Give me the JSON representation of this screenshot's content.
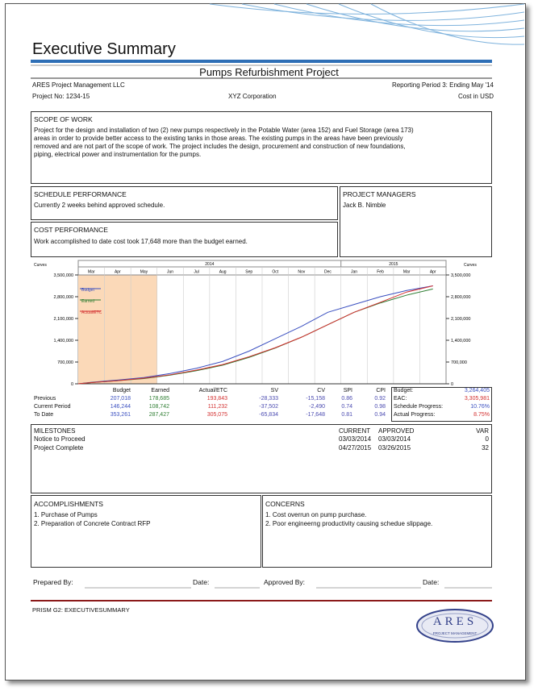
{
  "header": {
    "title": "Executive Summary",
    "project_title": "Pumps Refurbishment Project",
    "company": "ARES Project Management LLC",
    "reporting_period": "Reporting Period 3:  Ending May '14",
    "project_no": "Project No: 1234-15",
    "client": "XYZ Corporation",
    "currency": "Cost in USD"
  },
  "scope": {
    "heading": "SCOPE OF WORK",
    "lines": [
      "Project for the design and installation of two (2) new pumps respectively in the Potable Water (area 152) and Fuel Storage (area 173)",
      "areas in order to provide better access to the existing tanks in those areas. The existing pumps in the areas have been previously",
      "removed and are not part of the scope of work.  The project includes the design, procurement and construction of new foundations,",
      "piping, electrical power and instrumentation for the pumps."
    ]
  },
  "schedule": {
    "heading": "SCHEDULE PERFORMANCE",
    "text": "Currently 2 weeks behind approved schedule."
  },
  "managers": {
    "heading": "PROJECT MANAGERS",
    "names": [
      "Jack B. Nimble"
    ]
  },
  "cost": {
    "heading": "COST PERFORMANCE",
    "text": "Work accomplished to date cost took 17,648 more than the budget earned."
  },
  "chart_data": {
    "type": "line",
    "y_label": "Curves",
    "y2_label": "Curves",
    "year_labels": [
      "2014",
      "2015"
    ],
    "categories": [
      "Mar",
      "Apr",
      "May",
      "Jun",
      "Jul",
      "Aug",
      "Sep",
      "Oct",
      "Nov",
      "Dec",
      "Jan",
      "Feb",
      "Mar",
      "Apr"
    ],
    "series": [
      {
        "name": "Budget",
        "color": "#3a4fc0",
        "values": [
          50000,
          120000,
          200000,
          330000,
          500000,
          720000,
          1050000,
          1450000,
          1850000,
          2300000,
          2550000,
          2800000,
          3000000,
          3150000
        ]
      },
      {
        "name": "Earned",
        "color": "#2e7d32",
        "values": [
          40000,
          100000,
          170000,
          280000,
          420000,
          600000,
          850000,
          1150000,
          1500000,
          1900000,
          2300000,
          2600000,
          2850000,
          3050000
        ]
      },
      {
        "name": "Actual/ETC",
        "color": "#d32f2f",
        "values": [
          40000,
          100000,
          180000,
          290000,
          440000,
          620000,
          870000,
          1160000,
          1500000,
          1900000,
          2300000,
          2620000,
          2950000,
          3150000
        ]
      }
    ],
    "ylim": [
      0,
      3500000
    ],
    "yticks": [
      0,
      {
        "value": 700000,
        "label": "700,000"
      },
      {
        "value": 1400000,
        "label": "1,400,000"
      },
      {
        "value": 2100000,
        "label": "2,100,000"
      },
      {
        "value": 2800000,
        "label": "2,800,000"
      },
      {
        "value": 3500000,
        "label": "3,500,000"
      }
    ],
    "grid": true,
    "legend": "upper-left"
  },
  "performance": {
    "columns": [
      "Budget",
      "Earned",
      "Actual/ETC",
      "SV",
      "CV",
      "SPI",
      "CPI"
    ],
    "colors": [
      "#3a4fc0",
      "#2e7d32",
      "#d32f2f",
      "#4a4ab0",
      "#4a4ab0",
      "#4a4ab0",
      "#4a4ab0"
    ],
    "rows": [
      {
        "label": "Previous",
        "values": [
          "207,018",
          "178,685",
          "193,843",
          "-28,333",
          "-15,158",
          "0.86",
          "0.92"
        ]
      },
      {
        "label": "Current Period",
        "values": [
          "146,244",
          "108,742",
          "111,232",
          "-37,502",
          "-2,490",
          "0.74",
          "0.98"
        ]
      },
      {
        "label": "To Date",
        "values": [
          "353,261",
          "287,427",
          "305,075",
          "-65,834",
          "-17,648",
          "0.81",
          "0.94"
        ]
      }
    ]
  },
  "summary": [
    {
      "label": "Budget:",
      "value": "3,264,405",
      "color": "#3a4fc0"
    },
    {
      "label": "EAC:",
      "value": "3,305,981",
      "color": "#d32f2f"
    },
    {
      "label": "Schedule Progress:",
      "value": "10.76%",
      "color": "#3a4fc0"
    },
    {
      "label": "Actual Progress:",
      "value": "8.75%",
      "color": "#d32f2f"
    }
  ],
  "milestones": {
    "heading": "MILESTONES",
    "columns": [
      "CURRENT",
      "APPROVED",
      "VAR"
    ],
    "rows": [
      {
        "name": "Notice to Proceed",
        "current": "03/03/2014",
        "approved": "03/03/2014",
        "var": "0"
      },
      {
        "name": "Project Complete",
        "current": "04/27/2015",
        "approved": "03/26/2015",
        "var": "32"
      }
    ]
  },
  "accomplishments": {
    "heading": "ACCOMPLISHMENTS",
    "items": [
      "1. Purchase of Pumps",
      "2. Preparation of Concrete Contract RFP"
    ]
  },
  "concerns": {
    "heading": "CONCERNS",
    "items": [
      "1. Cost overrun on pump purchase.",
      "2. Poor engineerng productivity causing schedue slippage."
    ]
  },
  "signatures": [
    "Prepared By:",
    "Date:",
    "Approved By:",
    "Date:"
  ],
  "footer": {
    "form": "PRISM G2: EXECUTIVESUMMARY",
    "logo": "ARES",
    "logo_sub": "PROJECT MANAGEMENT"
  }
}
